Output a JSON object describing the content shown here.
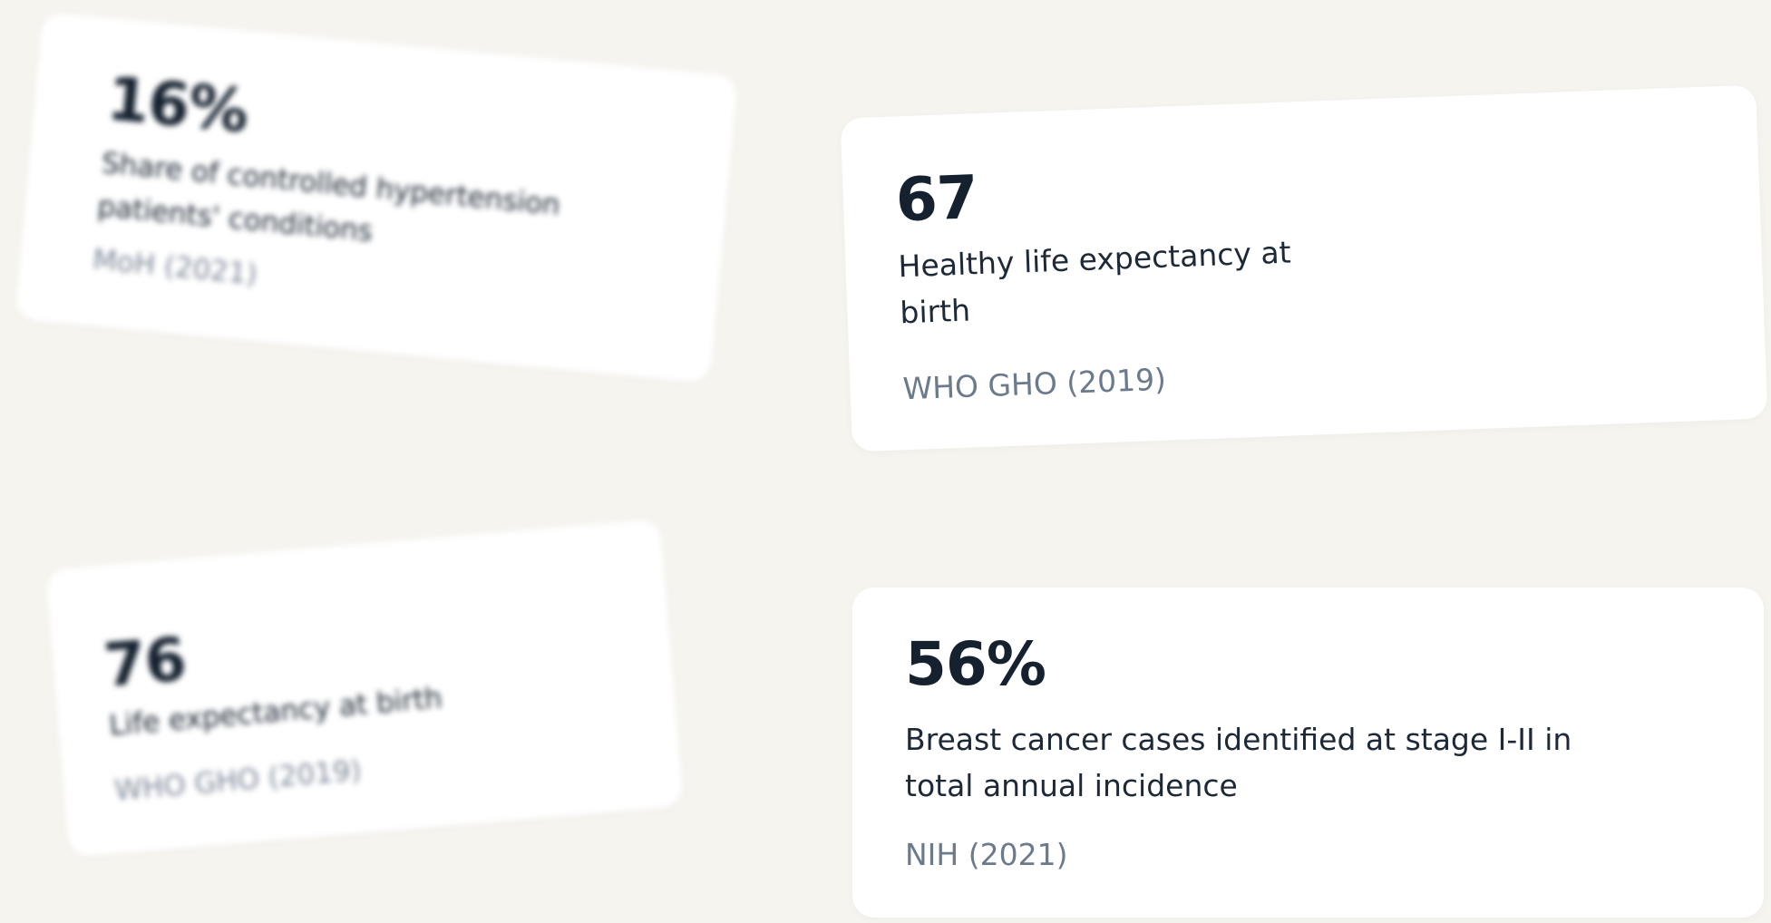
{
  "cards": [
    {
      "value": "16%",
      "label": "Share of controlled hypertension patients' conditions",
      "source": "MoH (2021)"
    },
    {
      "value": "67",
      "label": "Healthy life expectancy at birth",
      "source": "WHO GHO (2019)"
    },
    {
      "value": "76",
      "label": "Life expectancy at birth",
      "source": "WHO GHO (2019)"
    },
    {
      "value": "56%",
      "label": "Breast cancer cases identified at stage I-II in total annual incidence",
      "source": "NIH (2021)"
    }
  ],
  "colors": {
    "background": "#f6f4ef",
    "card": "#ffffff",
    "value_text": "#15212f",
    "label_text": "#1d2936",
    "source_text": "#6b7a8c"
  }
}
